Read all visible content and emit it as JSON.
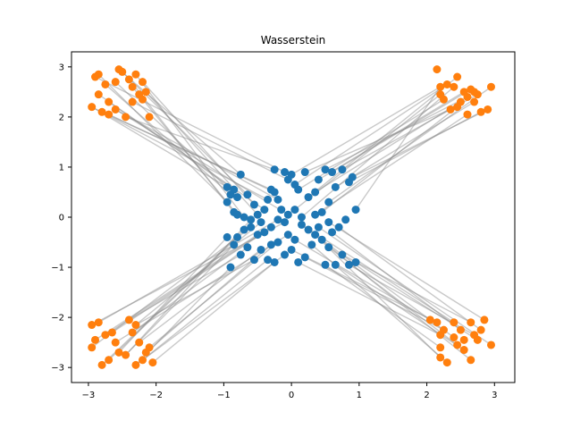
{
  "chart_data": {
    "type": "scatter",
    "title": "Wasserstein",
    "xlabel": "",
    "ylabel": "",
    "xlim": [
      -3.25,
      3.3
    ],
    "ylim": [
      -3.3,
      3.3
    ],
    "xticks": [
      -3,
      -2,
      -1,
      0,
      1,
      2,
      3
    ],
    "yticks": [
      -3,
      -2,
      -1,
      0,
      1,
      2,
      3
    ],
    "grid": false,
    "colors": {
      "source": "#1f77b4",
      "target": "#ff7f0e",
      "line": "#888888"
    },
    "series": [
      {
        "role": "source",
        "points": [
          [
            -0.95,
            0.3
          ],
          [
            -0.9,
            0.45
          ],
          [
            -0.85,
            0.55
          ],
          [
            -0.8,
            0.4
          ],
          [
            -0.75,
            0.85
          ],
          [
            -0.65,
            0.45
          ],
          [
            -0.85,
            0.1
          ],
          [
            -0.8,
            0.05
          ],
          [
            -0.7,
            0.0
          ],
          [
            -0.6,
            -0.05
          ],
          [
            -0.55,
            0.25
          ],
          [
            -0.5,
            0.05
          ],
          [
            -0.45,
            -0.1
          ],
          [
            -0.4,
            0.15
          ],
          [
            -0.35,
            0.35
          ],
          [
            -0.3,
            0.55
          ],
          [
            -0.25,
            0.5
          ],
          [
            -0.2,
            0.35
          ],
          [
            -0.25,
            0.95
          ],
          [
            -0.1,
            0.9
          ],
          [
            -0.05,
            0.75
          ],
          [
            0.0,
            0.85
          ],
          [
            0.05,
            0.65
          ],
          [
            0.1,
            0.55
          ],
          [
            0.2,
            0.9
          ],
          [
            0.25,
            0.4
          ],
          [
            0.35,
            0.5
          ],
          [
            0.4,
            0.75
          ],
          [
            0.5,
            0.95
          ],
          [
            0.6,
            0.9
          ],
          [
            0.65,
            0.6
          ],
          [
            0.75,
            0.95
          ],
          [
            0.85,
            0.7
          ],
          [
            0.9,
            0.8
          ],
          [
            0.55,
            0.3
          ],
          [
            0.45,
            0.1
          ],
          [
            0.35,
            0.05
          ],
          [
            0.15,
            0.0
          ],
          [
            0.05,
            0.15
          ],
          [
            -0.05,
            0.05
          ],
          [
            -0.1,
            -0.1
          ],
          [
            -0.2,
            -0.05
          ],
          [
            -0.3,
            -0.2
          ],
          [
            -0.4,
            -0.3
          ],
          [
            -0.5,
            -0.35
          ],
          [
            -0.6,
            -0.2
          ],
          [
            -0.7,
            -0.25
          ],
          [
            -0.8,
            -0.4
          ],
          [
            -0.95,
            -0.4
          ],
          [
            -0.85,
            -0.55
          ],
          [
            -0.75,
            -0.75
          ],
          [
            -0.65,
            -0.6
          ],
          [
            -0.55,
            -0.85
          ],
          [
            -0.45,
            -0.65
          ],
          [
            -0.35,
            -0.85
          ],
          [
            -0.3,
            -0.55
          ],
          [
            -0.25,
            -0.9
          ],
          [
            -0.2,
            -0.5
          ],
          [
            -0.1,
            -0.75
          ],
          [
            -0.05,
            -0.35
          ],
          [
            0.05,
            -0.45
          ],
          [
            0.0,
            -0.65
          ],
          [
            0.1,
            -0.9
          ],
          [
            0.2,
            -0.8
          ],
          [
            0.3,
            -0.55
          ],
          [
            0.35,
            -0.35
          ],
          [
            0.45,
            -0.45
          ],
          [
            0.55,
            -0.6
          ],
          [
            0.6,
            -0.3
          ],
          [
            0.65,
            -0.95
          ],
          [
            0.75,
            -0.75
          ],
          [
            0.85,
            -0.95
          ],
          [
            0.95,
            -0.9
          ],
          [
            0.7,
            -0.2
          ],
          [
            0.55,
            -0.1
          ],
          [
            0.4,
            -0.2
          ],
          [
            0.25,
            -0.25
          ],
          [
            0.15,
            -0.15
          ],
          [
            -0.9,
            -1.0
          ],
          [
            0.5,
            -0.95
          ],
          [
            -0.95,
            0.6
          ],
          [
            0.95,
            0.15
          ],
          [
            0.8,
            -0.05
          ],
          [
            -0.15,
            0.15
          ]
        ]
      },
      {
        "role": "target",
        "points": [
          [
            -2.85,
            2.85
          ],
          [
            -2.75,
            2.65
          ],
          [
            -2.7,
            2.3
          ],
          [
            -2.6,
            2.7
          ],
          [
            -2.55,
            2.95
          ],
          [
            -2.5,
            2.9
          ],
          [
            -2.4,
            2.75
          ],
          [
            -2.35,
            2.6
          ],
          [
            -2.3,
            2.85
          ],
          [
            -2.25,
            2.45
          ],
          [
            -2.2,
            2.7
          ],
          [
            -2.15,
            2.5
          ],
          [
            -2.1,
            2.0
          ],
          [
            -2.85,
            2.45
          ],
          [
            -2.95,
            2.2
          ],
          [
            -2.8,
            2.1
          ],
          [
            -2.7,
            2.05
          ],
          [
            -2.6,
            2.15
          ],
          [
            -2.45,
            2.0
          ],
          [
            -2.9,
            2.8
          ],
          [
            -2.35,
            2.3
          ],
          [
            -2.2,
            2.35
          ],
          [
            2.15,
            2.95
          ],
          [
            2.2,
            2.6
          ],
          [
            2.3,
            2.65
          ],
          [
            2.25,
            2.35
          ],
          [
            2.35,
            2.15
          ],
          [
            2.45,
            2.8
          ],
          [
            2.5,
            2.3
          ],
          [
            2.55,
            2.5
          ],
          [
            2.6,
            2.4
          ],
          [
            2.65,
            2.55
          ],
          [
            2.7,
            2.3
          ],
          [
            2.75,
            2.45
          ],
          [
            2.8,
            2.1
          ],
          [
            2.9,
            2.15
          ],
          [
            2.95,
            2.6
          ],
          [
            2.45,
            2.2
          ],
          [
            2.6,
            2.05
          ],
          [
            2.4,
            2.6
          ],
          [
            2.2,
            2.45
          ],
          [
            2.7,
            2.5
          ],
          [
            -2.95,
            -2.15
          ],
          [
            -2.85,
            -2.1
          ],
          [
            -2.75,
            -2.35
          ],
          [
            -2.65,
            -2.3
          ],
          [
            -2.9,
            -2.45
          ],
          [
            -2.95,
            -2.6
          ],
          [
            -2.8,
            -2.95
          ],
          [
            -2.7,
            -2.85
          ],
          [
            -2.55,
            -2.7
          ],
          [
            -2.45,
            -2.75
          ],
          [
            -2.4,
            -2.05
          ],
          [
            -2.35,
            -2.3
          ],
          [
            -2.3,
            -2.15
          ],
          [
            -2.25,
            -2.5
          ],
          [
            -2.2,
            -2.85
          ],
          [
            -2.15,
            -2.7
          ],
          [
            -2.05,
            -2.9
          ],
          [
            -2.1,
            -2.6
          ],
          [
            -2.3,
            -2.95
          ],
          [
            -2.6,
            -2.5
          ],
          [
            2.05,
            -2.05
          ],
          [
            2.15,
            -2.1
          ],
          [
            2.2,
            -2.35
          ],
          [
            2.25,
            -2.25
          ],
          [
            2.3,
            -2.9
          ],
          [
            2.2,
            -2.8
          ],
          [
            2.4,
            -2.4
          ],
          [
            2.45,
            -2.55
          ],
          [
            2.5,
            -2.25
          ],
          [
            2.55,
            -2.65
          ],
          [
            2.65,
            -2.1
          ],
          [
            2.7,
            -2.35
          ],
          [
            2.75,
            -2.45
          ],
          [
            2.8,
            -2.25
          ],
          [
            2.85,
            -2.05
          ],
          [
            2.95,
            -2.55
          ],
          [
            2.65,
            -2.85
          ],
          [
            2.4,
            -2.1
          ],
          [
            2.55,
            -2.45
          ],
          [
            2.2,
            -2.6
          ]
        ]
      }
    ]
  }
}
